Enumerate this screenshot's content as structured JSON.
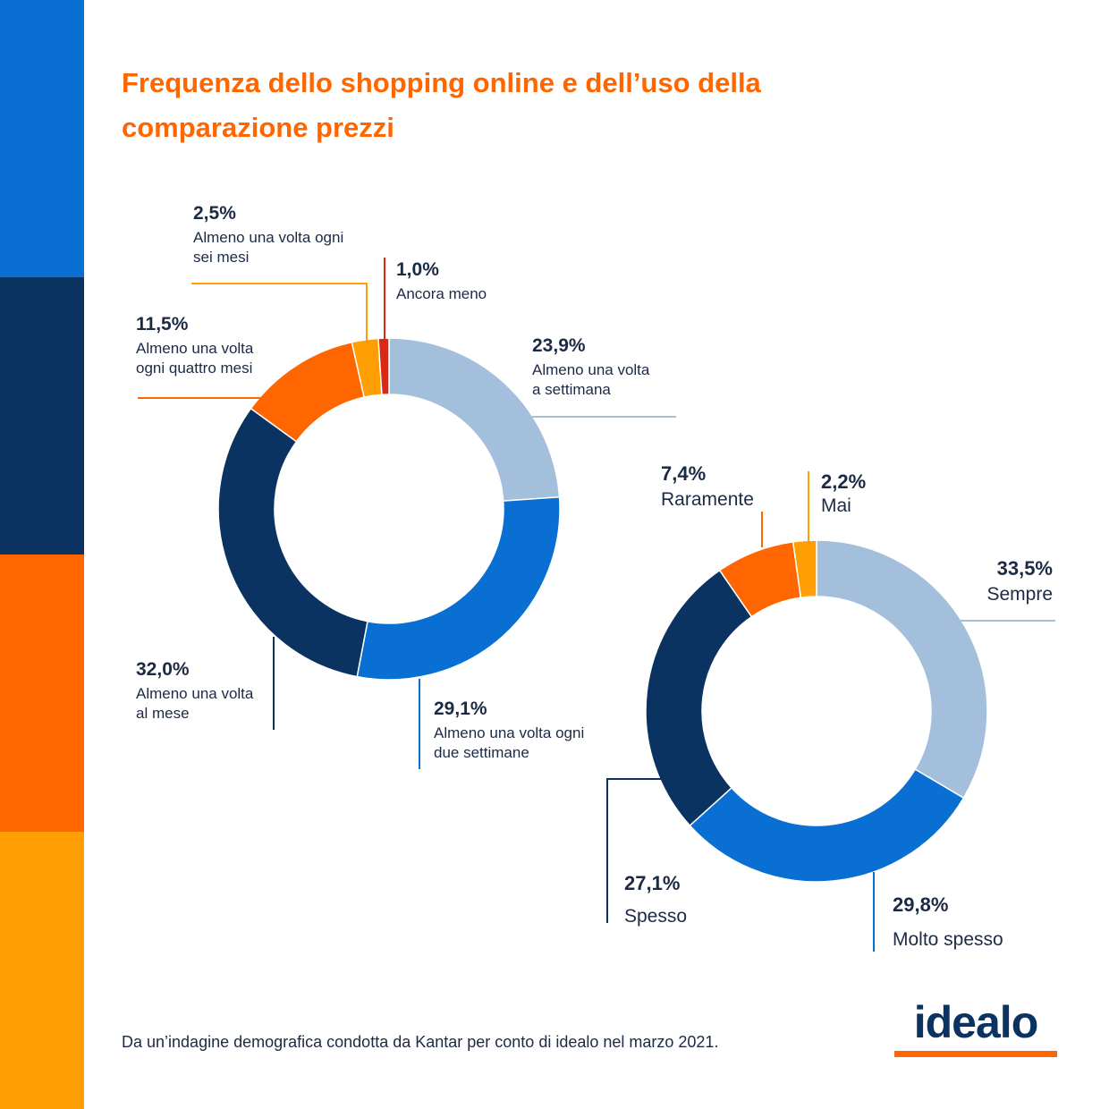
{
  "title_lines": [
    "Frequenza dello shopping online e dell’uso della",
    "comparazione prezzi"
  ],
  "footnote": "Da un’indagine demografica condotta da Kantar per conto di idealo nel marzo 2021.",
  "logo": {
    "text": "idealo"
  },
  "sidebar_colors": [
    "#0a6fd2",
    "#0b3361",
    "#ff6600",
    "#ff9f05"
  ],
  "colors": {
    "title": "#ff6600",
    "label_value": "#1d2a44",
    "light_blue": "#a3bfdb",
    "blue": "#0a6fd2",
    "navy": "#0b3361",
    "orange": "#ff6600",
    "amber": "#ff9f05",
    "red": "#d92b14"
  },
  "chart_data": [
    {
      "type": "pie",
      "variant": "donut",
      "labels": [
        "Almeno una volta a settimana",
        "Almeno una volta ogni due settimane",
        "Almeno una volta al mese",
        "Almeno una volta ogni quattro mesi",
        "Almeno una volta ogni sei mesi",
        "Ancora meno"
      ],
      "values": [
        23.9,
        29.1,
        32.0,
        11.5,
        2.5,
        1.0
      ],
      "value_labels": [
        "23,9%",
        "29,1%",
        "32,0%",
        "11,5%",
        "2,5%",
        "1,0%"
      ],
      "label_lines": [
        [
          "Almeno una volta",
          "a settimana"
        ],
        [
          "Almeno una volta ogni",
          "due settimane"
        ],
        [
          "Almeno una volta",
          "al mese"
        ],
        [
          "Almeno una volta",
          "ogni quattro mesi"
        ],
        [
          "Almeno una volta ogni",
          "sei mesi"
        ],
        [
          "Ancora meno"
        ]
      ],
      "colors": [
        "#a3bfdb",
        "#0a6fd2",
        "#0b3361",
        "#ff6600",
        "#ff9f05",
        "#d92b14"
      ]
    },
    {
      "type": "pie",
      "variant": "donut",
      "labels": [
        "Sempre",
        "Molto spesso",
        "Spesso",
        "Raramente",
        "Mai"
      ],
      "values": [
        33.5,
        29.8,
        27.1,
        7.4,
        2.2
      ],
      "value_labels": [
        "33,5%",
        "29,8%",
        "27,1%",
        "7,4%",
        "2,2%"
      ],
      "label_lines": [
        [
          "Sempre"
        ],
        [
          "Molto spesso"
        ],
        [
          "Spesso"
        ],
        [
          "Raramente"
        ],
        [
          "Mai"
        ]
      ],
      "colors": [
        "#a3bfdb",
        "#0a6fd2",
        "#0b3361",
        "#ff6600",
        "#ff9f05"
      ]
    }
  ]
}
